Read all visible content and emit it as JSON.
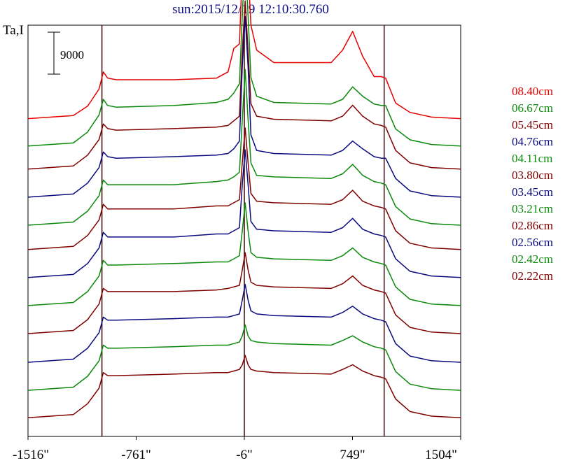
{
  "chart_data": {
    "type": "line",
    "title": "sun:2015/12/19 12:10:30.760",
    "ylabel": "Ta,I",
    "xlabel": "",
    "x_ticks": [
      "-1516\"",
      "-761\"",
      "-6\"",
      "749\"",
      "1504\""
    ],
    "x_tick_values": [
      -1516,
      -761,
      -6,
      749,
      1504
    ],
    "xlim": [
      -1516,
      1504
    ],
    "limb_markers": [
      -1000,
      -6,
      970
    ],
    "scale_bar": {
      "label": "9000",
      "value": 9000
    },
    "grid": false,
    "legend_placement": "right",
    "offset_step": 9000,
    "profile_x": [
      -1516,
      -1200,
      -1100,
      -1020,
      -990,
      -960,
      -900,
      -500,
      -200,
      -120,
      -80,
      -40,
      -20,
      0,
      20,
      40,
      80,
      200,
      600,
      680,
      750,
      820,
      900,
      950,
      980,
      1050,
      1150,
      1300,
      1504
    ],
    "series": [
      {
        "name": "08.40cm",
        "color": "#e60000",
        "base": 102000,
        "shape": [
          0,
          1000,
          4000,
          9500,
          15000,
          13000,
          12500,
          12500,
          13000,
          15000,
          22500,
          24000,
          48000,
          66000,
          48000,
          30000,
          22000,
          18000,
          18000,
          22000,
          28000,
          20000,
          13500,
          13500,
          13000,
          5000,
          2000,
          500,
          0
        ]
      },
      {
        "name": "06.67cm",
        "color": "#0a8a0a",
        "base": 93200,
        "shape": [
          0,
          1000,
          4500,
          10000,
          15000,
          13000,
          12500,
          13000,
          14000,
          15000,
          17000,
          20000,
          42000,
          61000,
          42000,
          22000,
          16000,
          14000,
          13500,
          15000,
          19000,
          16000,
          13500,
          13000,
          13000,
          5500,
          2000,
          500,
          0
        ]
      },
      {
        "name": "05.45cm",
        "color": "#800000",
        "base": 85800,
        "shape": [
          0,
          1000,
          4500,
          9500,
          14500,
          13000,
          12500,
          13000,
          13500,
          14000,
          15500,
          17000,
          38000,
          54000,
          38000,
          21000,
          17000,
          16000,
          15500,
          17000,
          20500,
          17000,
          14500,
          14000,
          13500,
          6000,
          2000,
          500,
          0
        ]
      },
      {
        "name": "04.76cm",
        "color": "#0a0a80",
        "base": 76800,
        "shape": [
          0,
          1000,
          4500,
          9500,
          14500,
          13000,
          12500,
          13000,
          13500,
          14000,
          15500,
          18000,
          42000,
          58000,
          42000,
          20000,
          15000,
          14000,
          13500,
          15000,
          18000,
          15500,
          13000,
          12500,
          12500,
          6000,
          2000,
          500,
          0
        ]
      },
      {
        "name": "04.11cm",
        "color": "#0a8a0a",
        "base": 67800,
        "shape": [
          0,
          1000,
          4500,
          9500,
          14500,
          13000,
          13000,
          13000,
          14000,
          14500,
          15500,
          17000,
          34000,
          50000,
          34000,
          20000,
          16000,
          15500,
          15000,
          16500,
          19500,
          16000,
          14000,
          13500,
          13000,
          6000,
          2000,
          500,
          0
        ]
      },
      {
        "name": "03.80cm",
        "color": "#800000",
        "base": 60000,
        "shape": [
          0,
          1000,
          4500,
          9500,
          14500,
          13000,
          13000,
          13000,
          14000,
          14000,
          15000,
          16000,
          28000,
          39000,
          28000,
          18000,
          15500,
          15000,
          14500,
          16000,
          19000,
          15500,
          14000,
          13500,
          13000,
          6000,
          2000,
          500,
          0
        ]
      },
      {
        "name": "03.45cm",
        "color": "#0a0a80",
        "base": 51000,
        "shape": [
          0,
          1000,
          4500,
          9500,
          14500,
          13000,
          13000,
          13000,
          14000,
          14000,
          15000,
          16000,
          30000,
          41000,
          30000,
          18000,
          15500,
          15000,
          14500,
          16000,
          19000,
          15500,
          14000,
          13500,
          13000,
          6000,
          2000,
          500,
          0
        ]
      },
      {
        "name": "03.21cm",
        "color": "#0a8a0a",
        "base": 42000,
        "shape": [
          0,
          1000,
          4500,
          9500,
          14500,
          13000,
          13000,
          13500,
          14000,
          14000,
          15000,
          16000,
          24000,
          33000,
          24000,
          17000,
          15500,
          15000,
          14500,
          16000,
          18500,
          15500,
          14000,
          13500,
          13000,
          6000,
          2000,
          500,
          0
        ]
      },
      {
        "name": "02.86cm",
        "color": "#800000",
        "base": 33000,
        "shape": [
          0,
          1000,
          4500,
          9500,
          14500,
          13500,
          13500,
          13500,
          14000,
          14500,
          15000,
          15500,
          20500,
          26000,
          20500,
          16500,
          15500,
          15000,
          14500,
          16000,
          18500,
          15500,
          14000,
          13500,
          13000,
          6000,
          2000,
          500,
          0
        ]
      },
      {
        "name": "02.56cm",
        "color": "#0a0a80",
        "base": 23800,
        "shape": [
          0,
          1000,
          4500,
          9500,
          14500,
          13500,
          13500,
          14000,
          14500,
          14500,
          15000,
          15500,
          20000,
          25000,
          20000,
          16500,
          15500,
          15000,
          14500,
          16000,
          18000,
          15500,
          14000,
          13500,
          13000,
          6000,
          2000,
          500,
          0
        ]
      },
      {
        "name": "02.42cm",
        "color": "#0a8a0a",
        "base": 14800,
        "shape": [
          0,
          1000,
          4500,
          9500,
          14500,
          13500,
          13500,
          14000,
          14500,
          14500,
          15000,
          15500,
          17500,
          21000,
          17500,
          16000,
          15500,
          15000,
          14500,
          16000,
          17500,
          15500,
          14000,
          13500,
          13000,
          6000,
          2000,
          500,
          0
        ]
      },
      {
        "name": "02.22cm",
        "color": "#800000",
        "base": 6000,
        "shape": [
          0,
          1000,
          4500,
          9500,
          14500,
          13500,
          13500,
          14000,
          14500,
          14500,
          15000,
          15500,
          17000,
          20000,
          17000,
          15500,
          15000,
          14500,
          14000,
          15500,
          17000,
          15000,
          13500,
          13000,
          12500,
          6000,
          2000,
          500,
          0
        ]
      }
    ],
    "ylim": [
      0,
      132000
    ]
  }
}
